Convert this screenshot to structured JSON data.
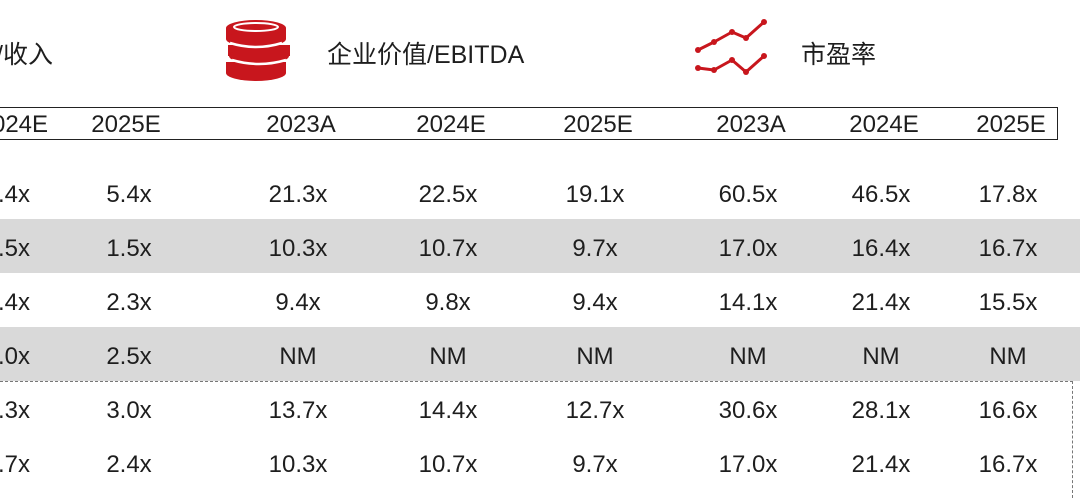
{
  "sections": [
    {
      "title": "/收入",
      "icon": ""
    },
    {
      "title": "企业价值/EBITDA",
      "icon": "coin-stack-icon"
    },
    {
      "title": "市盈率",
      "icon": "line-trend-icon"
    }
  ],
  "years": [
    "024E",
    "2025E",
    "2023A",
    "2024E",
    "2025E",
    "2023A",
    "2024E",
    "2025E"
  ],
  "rows": [
    [
      ".4x",
      "5.4x",
      "21.3x",
      "22.5x",
      "19.1x",
      "60.5x",
      "46.5x",
      "17.8x"
    ],
    [
      ".5x",
      "1.5x",
      "10.3x",
      "10.7x",
      "9.7x",
      "17.0x",
      "16.4x",
      "16.7x"
    ],
    [
      ".4x",
      "2.3x",
      "9.4x",
      "9.8x",
      "9.4x",
      "14.1x",
      "21.4x",
      "15.5x"
    ],
    [
      ".0x",
      "2.5x",
      "NM",
      "NM",
      "NM",
      "NM",
      "NM",
      "NM"
    ],
    [
      ".3x",
      "3.0x",
      "13.7x",
      "14.4x",
      "12.7x",
      "30.6x",
      "28.1x",
      "16.6x"
    ],
    [
      ".7x",
      "2.4x",
      "10.3x",
      "10.7x",
      "9.7x",
      "17.0x",
      "21.4x",
      "16.7x"
    ]
  ],
  "colors": {
    "accent": "#c8161d",
    "band": "#d9d9d9"
  }
}
